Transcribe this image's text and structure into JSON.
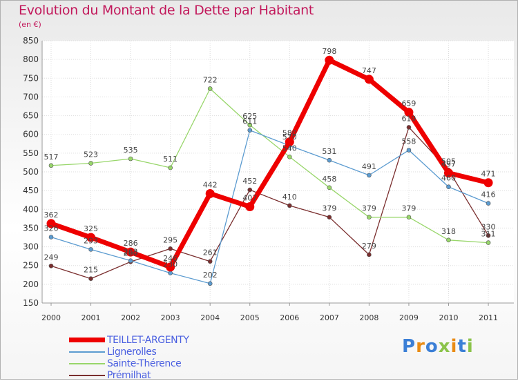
{
  "title": "Evolution du Montant de la Dette par Habitant",
  "subtitle": "(en €)",
  "logo": {
    "text": "Proxiti",
    "colors": [
      "#3b7fd6",
      "#e98b14",
      "#3b7fd6",
      "#8bc34a",
      "#e98b14",
      "#3b7fd6",
      "#8bc34a"
    ]
  },
  "chart_data": {
    "type": "line",
    "x": [
      "2000",
      "2001",
      "2002",
      "2003",
      "2004",
      "2005",
      "2006",
      "2007",
      "2008",
      "2009",
      "2010",
      "2011"
    ],
    "ylim": [
      150,
      850
    ],
    "yticks": [
      150,
      200,
      250,
      300,
      350,
      400,
      450,
      500,
      550,
      600,
      650,
      700,
      750,
      800,
      850
    ],
    "grid": true,
    "legend_position": "bottom-left",
    "series": [
      {
        "name": "TEILLET-ARGENTY",
        "color": "#ee0000",
        "values": [
          362,
          325,
          286,
          246,
          442,
          407,
          580,
          798,
          747,
          659,
          497,
          471
        ]
      },
      {
        "name": "Lignerolles",
        "color": "#5b9bd0",
        "values": [
          326,
          293,
          263,
          230,
          202,
          611,
          570,
          531,
          491,
          558,
          460,
          416
        ]
      },
      {
        "name": "Sainte-Thérence",
        "color": "#98d66a",
        "values": [
          517,
          523,
          535,
          511,
          722,
          625,
          540,
          458,
          379,
          379,
          318,
          311
        ]
      },
      {
        "name": "Prémilhat",
        "color": "#7a2e2e",
        "values": [
          249,
          215,
          260,
          295,
          261,
          452,
          410,
          379,
          279,
          619,
          505,
          330
        ]
      }
    ]
  }
}
